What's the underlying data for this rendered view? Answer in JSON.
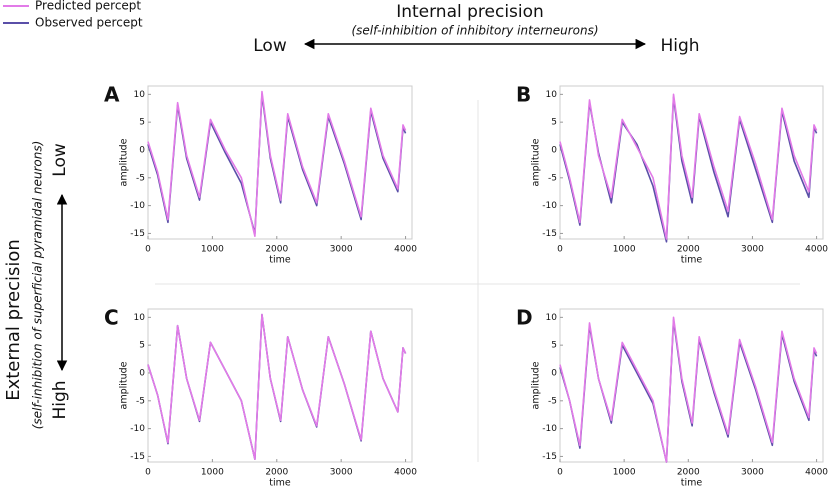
{
  "figure": {
    "top_title": "Internal precision",
    "top_subtitle": "(self-inhibition of inhibitory interneurons)",
    "top_low": "Low",
    "top_high": "High",
    "side_title": "External precision",
    "side_subtitle": "(self-inhibition of superficial pyramidal neurons)",
    "side_low": "Low",
    "side_high": "High"
  },
  "chart_data": [
    {
      "type": "line",
      "title": "A",
      "xlabel": "time",
      "ylabel": "amplitude",
      "xlim": [
        0,
        4100
      ],
      "ylim": [
        -16,
        11.5
      ],
      "xticks": [
        0,
        1000,
        2000,
        3000,
        4000
      ],
      "yticks": [
        -15,
        -10,
        -5,
        0,
        5,
        10
      ],
      "x": [
        0,
        150,
        310,
        460,
        600,
        800,
        970,
        1200,
        1450,
        1660,
        1770,
        1900,
        2060,
        2170,
        2400,
        2620,
        2800,
        3050,
        3310,
        3460,
        3650,
        3880,
        3960,
        4000
      ],
      "series": [
        {
          "name": "Predicted percept",
          "color": "#e27be8",
          "values": [
            1.5,
            -4,
            -12.5,
            8.5,
            -1,
            -8.5,
            5.5,
            0,
            -5,
            -15.5,
            10.5,
            -1,
            -9,
            6.5,
            -3,
            -9.5,
            6.5,
            -2,
            -12,
            7.5,
            -1,
            -7,
            4.5,
            3.5
          ]
        },
        {
          "name": "Observed percept",
          "color": "#5a4fa8",
          "values": [
            1,
            -4.5,
            -13,
            8,
            -1.5,
            -9,
            5,
            -0.5,
            -6,
            -15,
            10,
            -1.5,
            -9.5,
            6,
            -3.5,
            -10,
            6,
            -2.5,
            -12.5,
            7,
            -1.5,
            -7.5,
            4,
            3
          ]
        }
      ]
    },
    {
      "type": "line",
      "title": "B",
      "xlabel": "time",
      "ylabel": "amplitude",
      "xlim": [
        0,
        4100
      ],
      "ylim": [
        -16,
        11.5
      ],
      "xticks": [
        0,
        1000,
        2000,
        3000,
        4000
      ],
      "yticks": [
        -15,
        -10,
        -5,
        0,
        5,
        10
      ],
      "x": [
        0,
        150,
        310,
        460,
        600,
        800,
        970,
        1200,
        1450,
        1660,
        1770,
        1900,
        2060,
        2170,
        2400,
        2620,
        2800,
        3050,
        3310,
        3460,
        3650,
        3880,
        3960,
        4000
      ],
      "series": [
        {
          "name": "Predicted percept",
          "color": "#e27be8",
          "values": [
            1.5,
            -5,
            -13,
            9,
            -1,
            -8.5,
            5.5,
            0.5,
            -5,
            -16,
            10,
            -1,
            -8.5,
            6.5,
            -3,
            -11,
            6,
            -2.5,
            -12.5,
            7.5,
            -1,
            -7.5,
            4.5,
            3.5
          ]
        },
        {
          "name": "Observed percept",
          "color": "#5a4fa8",
          "values": [
            1,
            -5.5,
            -13.5,
            8.5,
            -0.5,
            -9.5,
            5,
            1,
            -6.5,
            -16.5,
            9.5,
            -2,
            -9.5,
            6,
            -4,
            -12,
            5.5,
            -3.5,
            -13,
            7,
            -2,
            -8.5,
            4,
            3
          ]
        }
      ]
    },
    {
      "type": "line",
      "title": "C",
      "xlabel": "time",
      "ylabel": "amplitude",
      "xlim": [
        0,
        4100
      ],
      "ylim": [
        -16,
        11.5
      ],
      "xticks": [
        0,
        1000,
        2000,
        3000,
        4000
      ],
      "yticks": [
        -15,
        -10,
        -5,
        0,
        5,
        10
      ],
      "x": [
        0,
        150,
        310,
        460,
        600,
        800,
        970,
        1200,
        1450,
        1660,
        1770,
        1900,
        2060,
        2170,
        2400,
        2620,
        2800,
        3050,
        3310,
        3460,
        3650,
        3880,
        3960,
        4000
      ],
      "series": [
        {
          "name": "Predicted percept",
          "color": "#e27be8",
          "values": [
            1.5,
            -4,
            -12.5,
            8.5,
            -1,
            -8.5,
            5.5,
            0.5,
            -5,
            -15.5,
            10.5,
            -1,
            -8.5,
            6.5,
            -3,
            -9.5,
            6.5,
            -2,
            -12,
            7.5,
            -1,
            -7,
            4.5,
            3.5
          ]
        },
        {
          "name": "Observed percept",
          "color": "#5a4fa8",
          "values": [
            1.5,
            -4,
            -12.7,
            8.5,
            -1,
            -8.7,
            5.5,
            0.5,
            -5,
            -15.5,
            10.5,
            -1,
            -8.7,
            6.5,
            -3,
            -9.7,
            6.5,
            -2,
            -12.2,
            7.5,
            -1,
            -7,
            4.5,
            3.5
          ]
        }
      ]
    },
    {
      "type": "line",
      "title": "D",
      "xlabel": "time",
      "ylabel": "amplitude",
      "xlim": [
        0,
        4100
      ],
      "ylim": [
        -16,
        11.5
      ],
      "xticks": [
        0,
        1000,
        2000,
        3000,
        4000
      ],
      "yticks": [
        -15,
        -10,
        -5,
        0,
        5,
        10
      ],
      "x": [
        0,
        150,
        310,
        460,
        600,
        800,
        970,
        1200,
        1450,
        1660,
        1770,
        1900,
        2060,
        2170,
        2400,
        2620,
        2800,
        3050,
        3310,
        3460,
        3650,
        3880,
        3960,
        4000
      ],
      "series": [
        {
          "name": "Predicted percept",
          "color": "#e27be8",
          "values": [
            1.5,
            -5,
            -13,
            9,
            -1,
            -8.5,
            5.5,
            0.5,
            -5,
            -16,
            10,
            -1,
            -9,
            6.5,
            -3,
            -11,
            6,
            -2.5,
            -12.5,
            7.5,
            -1,
            -8,
            4.5,
            3.5
          ]
        },
        {
          "name": "Observed percept",
          "color": "#5a4fa8",
          "values": [
            1,
            -5,
            -13.5,
            8.5,
            -1,
            -9,
            5,
            0,
            -5.5,
            -16,
            9.5,
            -1.5,
            -9.5,
            6,
            -3.5,
            -11.5,
            5.5,
            -3,
            -13,
            7,
            -1.5,
            -8.5,
            4,
            3
          ]
        }
      ]
    }
  ]
}
